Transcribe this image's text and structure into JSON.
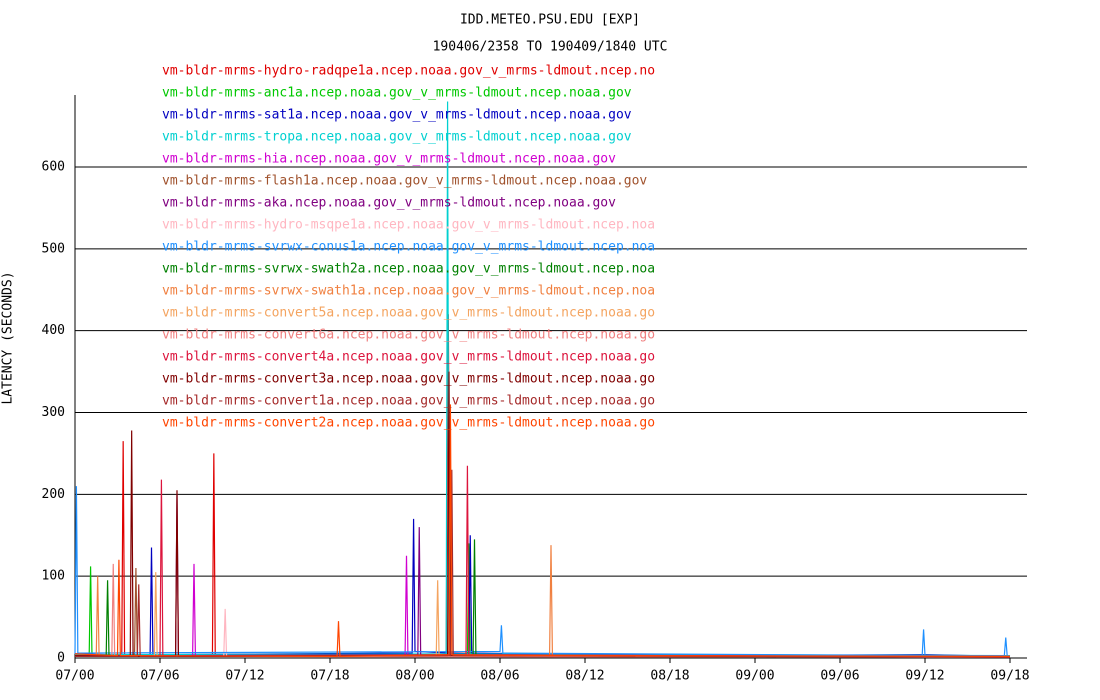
{
  "chart_data": {
    "type": "line",
    "title": "IDD.METEO.PSU.EDU [EXP]",
    "subtitle": "190406/2358 TO 190409/1840 UTC",
    "y_label": "LATENCY (SECONDS)",
    "xlim": [
      0,
      67.2
    ],
    "xticks": [
      {
        "value": 0,
        "label": "07/00"
      },
      {
        "value": 6,
        "label": "07/06"
      },
      {
        "value": 12,
        "label": "07/12"
      },
      {
        "value": 18,
        "label": "07/18"
      },
      {
        "value": 24,
        "label": "08/00"
      },
      {
        "value": 30,
        "label": "08/06"
      },
      {
        "value": 36,
        "label": "08/12"
      },
      {
        "value": 42,
        "label": "08/18"
      },
      {
        "value": 48,
        "label": "09/00"
      },
      {
        "value": 54,
        "label": "09/06"
      },
      {
        "value": 60,
        "label": "09/12"
      },
      {
        "value": 66,
        "label": "09/18"
      }
    ],
    "ylim": [
      0,
      688
    ],
    "yticks": [
      0,
      100,
      200,
      300,
      400,
      500,
      600
    ],
    "grid": true,
    "series": [
      {
        "name": "vm-bldr-mrms-hydro-radqpe1a.ncep.noaa.gov_v_mrms-ldmout.ncep.no",
        "color": "#e00000",
        "x": [
          0,
          3.3,
          3.4,
          3.5,
          9.7,
          9.8,
          9.9,
          20,
          26.2,
          26.35,
          26.5,
          40,
          50,
          66
        ],
        "values": [
          5,
          2,
          265,
          3,
          2,
          250,
          3,
          4,
          5,
          420,
          6,
          3,
          2,
          1
        ]
      },
      {
        "name": "vm-bldr-mrms-anc1a.ncep.noaa.gov_v_mrms-ldmout.ncep.noaa.gov",
        "color": "#00c800",
        "x": [
          0,
          1,
          1.1,
          1.2,
          27,
          27.7,
          27.8,
          27.9,
          40,
          66
        ],
        "values": [
          3,
          2,
          112,
          2,
          4,
          3,
          140,
          3,
          2,
          1
        ]
      },
      {
        "name": "vm-bldr-mrms-sat1a.ncep.noaa.gov_v_mrms-ldmout.ncep.noaa.gov",
        "color": "#0000c0",
        "x": [
          0,
          5.3,
          5.4,
          5.5,
          23.8,
          23.9,
          24.0,
          27.8,
          27.9,
          28,
          45,
          60,
          66
        ],
        "values": [
          5,
          3,
          135,
          4,
          6,
          170,
          8,
          5,
          150,
          6,
          3,
          4,
          2
        ]
      },
      {
        "name": "vm-bldr-mrms-tropa.ncep.noaa.gov_v_mrms-ldmout.ncep.noaa.gov",
        "color": "#00d0d0",
        "x": [
          0,
          26.2,
          26.3,
          26.4,
          66
        ],
        "values": [
          4,
          5,
          680,
          5,
          3
        ]
      },
      {
        "name": "vm-bldr-mrms-hia.ncep.noaa.gov_v_mrms-ldmout.ncep.noaa.gov",
        "color": "#d000d0",
        "x": [
          0,
          8.3,
          8.4,
          8.5,
          23.3,
          23.4,
          23.5,
          66
        ],
        "values": [
          2,
          2,
          115,
          2,
          3,
          125,
          3,
          1
        ]
      },
      {
        "name": "vm-bldr-mrms-flash1a.ncep.noaa.gov_v_mrms-ldmout.ncep.noaa.gov",
        "color": "#a0522d",
        "x": [
          0,
          4.2,
          4.3,
          4.4,
          66
        ],
        "values": [
          3,
          2,
          110,
          2,
          2
        ]
      },
      {
        "name": "vm-bldr-mrms-aka.ncep.noaa.gov_v_mrms-ldmout.ncep.noaa.gov",
        "color": "#800080",
        "x": [
          0,
          7.1,
          7.2,
          7.3,
          24.2,
          24.3,
          24.4,
          66
        ],
        "values": [
          3,
          3,
          200,
          3,
          4,
          160,
          4,
          2
        ]
      },
      {
        "name": "vm-bldr-mrms-hydro-msqpe1a.ncep.noaa.gov_v_mrms-ldmout.ncep.noa",
        "color": "#ffb6c1",
        "x": [
          0,
          10.5,
          10.6,
          10.7,
          66
        ],
        "values": [
          2,
          2,
          60,
          2,
          1
        ]
      },
      {
        "name": "vm-bldr-mrms-svrwx-conus1a.ncep.noaa.gov_v_mrms-ldmout.ncep.noa",
        "color": "#1e90ff",
        "x": [
          0,
          0.1,
          0.2,
          30,
          30.1,
          30.2,
          59.8,
          59.9,
          60,
          65.6,
          65.7,
          65.8,
          66
        ],
        "values": [
          5,
          210,
          6,
          8,
          40,
          6,
          3,
          35,
          3,
          3,
          25,
          3,
          2
        ]
      },
      {
        "name": "vm-bldr-mrms-svrwx-swath2a.ncep.noaa.gov_v_mrms-ldmout.ncep.noa",
        "color": "#008000",
        "x": [
          0,
          2.2,
          2.3,
          2.4,
          28.1,
          28.2,
          28.3,
          66
        ],
        "values": [
          2,
          2,
          95,
          2,
          3,
          145,
          3,
          1
        ]
      },
      {
        "name": "vm-bldr-mrms-svrwx-swath1a.ncep.noaa.gov_v_mrms-ldmout.ncep.noa",
        "color": "#f08040",
        "x": [
          0,
          1.5,
          1.6,
          1.7,
          33.5,
          33.6,
          33.7,
          66
        ],
        "values": [
          3,
          2,
          100,
          2,
          3,
          138,
          3,
          2
        ]
      },
      {
        "name": "vm-bldr-mrms-convert5a.ncep.noaa.gov_v_mrms-ldmout.ncep.noaa.go",
        "color": "#f4a460",
        "x": [
          0,
          5.6,
          5.7,
          5.8,
          25.5,
          25.6,
          25.7,
          66
        ],
        "values": [
          3,
          2,
          105,
          2,
          3,
          95,
          3,
          1
        ]
      },
      {
        "name": "vm-bldr-mrms-convert6a.ncep.noaa.gov_v_mrms-ldmout.ncep.noaa.go",
        "color": "#f08080",
        "x": [
          0,
          2.6,
          2.7,
          2.8,
          66
        ],
        "values": [
          2,
          2,
          115,
          2,
          1
        ]
      },
      {
        "name": "vm-bldr-mrms-convert4a.ncep.noaa.gov_v_mrms-ldmout.ncep.noaa.go",
        "color": "#dc143c",
        "x": [
          0,
          6,
          6.1,
          6.2,
          27.6,
          27.7,
          27.8,
          66
        ],
        "values": [
          3,
          2,
          218,
          2,
          4,
          235,
          4,
          1
        ]
      },
      {
        "name": "vm-bldr-mrms-convert3a.ncep.noaa.gov_v_mrms-ldmout.ncep.noaa.go",
        "color": "#800000",
        "x": [
          0,
          3.9,
          4.0,
          4.1,
          7.1,
          7.2,
          7.3,
          26.3,
          26.4,
          26.5,
          66
        ],
        "values": [
          3,
          2,
          278,
          2,
          2,
          205,
          2,
          3,
          350,
          3,
          1
        ]
      },
      {
        "name": "vm-bldr-mrms-convert1a.ncep.noaa.gov_v_mrms-ldmout.ncep.noaa.go",
        "color": "#a52a2a",
        "x": [
          0,
          4.4,
          4.5,
          4.6,
          26.5,
          26.6,
          26.7,
          66
        ],
        "values": [
          2,
          2,
          90,
          2,
          3,
          230,
          3,
          1
        ]
      },
      {
        "name": "vm-bldr-mrms-convert2a.ncep.noaa.gov_v_mrms-ldmout.ncep.noaa.go",
        "color": "#ff4500",
        "x": [
          0,
          3.0,
          3.1,
          3.2,
          18.5,
          18.6,
          18.7,
          26.4,
          26.5,
          26.6,
          32,
          66
        ],
        "values": [
          5,
          3,
          120,
          3,
          2,
          45,
          2,
          4,
          310,
          4,
          3,
          2
        ]
      }
    ]
  }
}
